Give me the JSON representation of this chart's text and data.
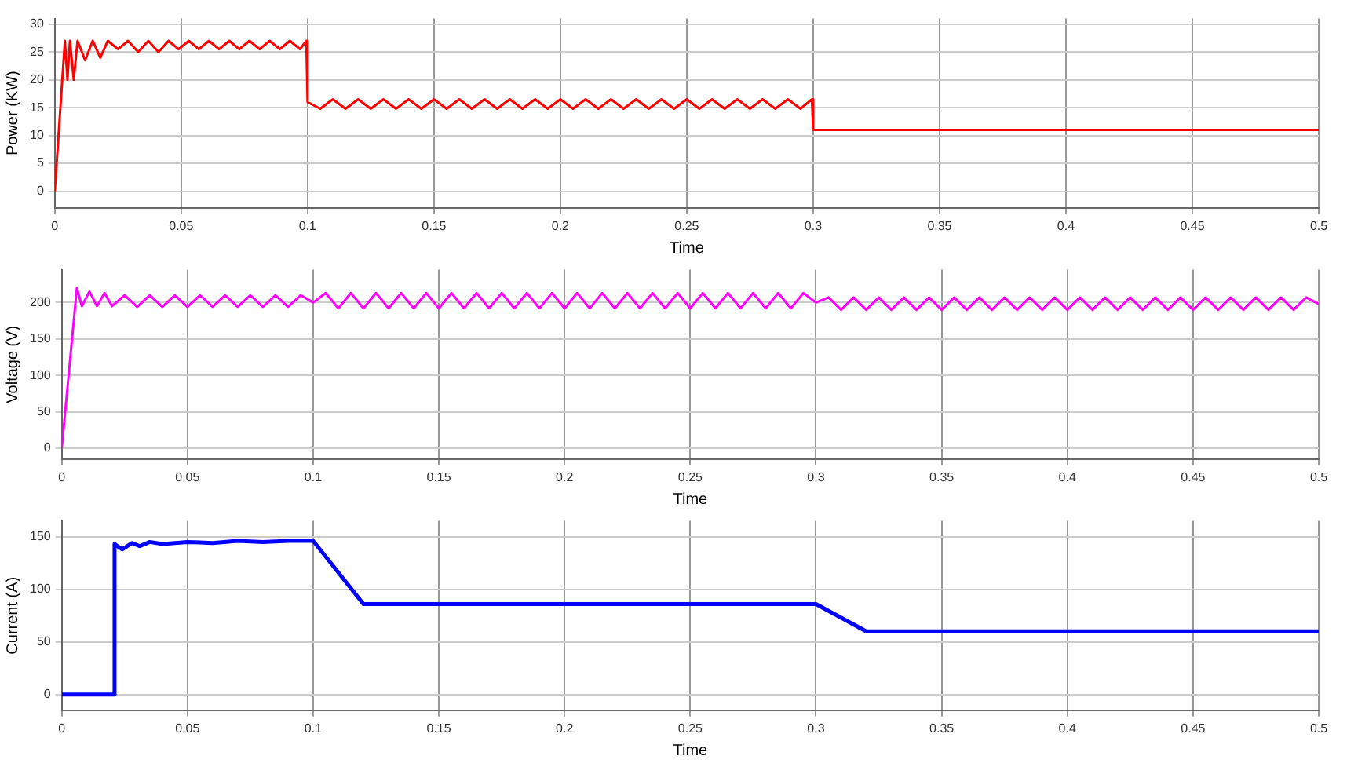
{
  "chart_data": [
    {
      "type": "line",
      "xlabel": "Time",
      "ylabel": "Power (KW)",
      "xlim": [
        0,
        0.5
      ],
      "xticks": [
        0,
        0.05,
        0.1,
        0.15,
        0.2,
        0.25,
        0.3,
        0.35,
        0.4,
        0.45,
        0.5
      ],
      "ylim": [
        -3,
        31
      ],
      "yticks": [
        0,
        5,
        10,
        15,
        20,
        25,
        30
      ],
      "grid": true,
      "marker": "none",
      "line_style": "solid",
      "series": [
        {
          "color": "#ff0000",
          "x": [
            0,
            0.004,
            0.005,
            0.006,
            0.0075,
            0.009,
            0.012,
            0.015,
            0.018,
            0.021,
            0.025,
            0.029,
            0.033,
            0.037,
            0.041,
            0.045,
            0.049,
            0.053,
            0.057,
            0.061,
            0.065,
            0.069,
            0.073,
            0.077,
            0.081,
            0.085,
            0.089,
            0.093,
            0.097,
            0.0995,
            0.1,
            0.105,
            0.11,
            0.115,
            0.12,
            0.125,
            0.13,
            0.135,
            0.14,
            0.145,
            0.15,
            0.155,
            0.16,
            0.165,
            0.17,
            0.175,
            0.18,
            0.185,
            0.19,
            0.195,
            0.2,
            0.205,
            0.21,
            0.215,
            0.22,
            0.225,
            0.23,
            0.235,
            0.24,
            0.245,
            0.25,
            0.255,
            0.26,
            0.265,
            0.27,
            0.275,
            0.28,
            0.285,
            0.29,
            0.295,
            0.2995,
            0.3,
            0.35,
            0.4,
            0.45,
            0.5
          ],
          "values": [
            0,
            27,
            20,
            27,
            20,
            27,
            23.5,
            27,
            24,
            27,
            25.5,
            27,
            25,
            27,
            25,
            27,
            25.5,
            27,
            25.5,
            27,
            25.5,
            27,
            25.5,
            27,
            25.5,
            27,
            25.5,
            27,
            25.5,
            27,
            16,
            14.8,
            16.5,
            14.8,
            16.5,
            14.8,
            16.5,
            14.8,
            16.5,
            14.8,
            16.5,
            14.8,
            16.5,
            14.8,
            16.5,
            14.8,
            16.5,
            14.8,
            16.5,
            14.8,
            16.5,
            14.8,
            16.5,
            14.8,
            16.5,
            14.8,
            16.5,
            14.8,
            16.5,
            14.8,
            16.5,
            14.8,
            16.5,
            14.8,
            16.5,
            14.8,
            16.5,
            14.8,
            16.5,
            14.8,
            16.5,
            11,
            11,
            11,
            11,
            11
          ]
        }
      ]
    },
    {
      "type": "line",
      "xlabel": "Time",
      "ylabel": "Voltage (V)",
      "xlim": [
        0,
        0.5
      ],
      "xticks": [
        0,
        0.05,
        0.1,
        0.15,
        0.2,
        0.25,
        0.3,
        0.35,
        0.4,
        0.45,
        0.5
      ],
      "ylim": [
        -15,
        245
      ],
      "yticks": [
        0,
        50,
        100,
        150,
        200
      ],
      "grid": true,
      "marker": "none",
      "line_style": "solid",
      "series": [
        {
          "color": "#ff00ff",
          "x": [
            0,
            0.006,
            0.008,
            0.011,
            0.014,
            0.017,
            0.02,
            0.025,
            0.03,
            0.035,
            0.04,
            0.045,
            0.05,
            0.055,
            0.06,
            0.065,
            0.07,
            0.075,
            0.08,
            0.085,
            0.09,
            0.095,
            0.1,
            0.105,
            0.11,
            0.115,
            0.12,
            0.125,
            0.13,
            0.135,
            0.14,
            0.145,
            0.15,
            0.155,
            0.16,
            0.165,
            0.17,
            0.175,
            0.18,
            0.185,
            0.19,
            0.195,
            0.2,
            0.205,
            0.21,
            0.215,
            0.22,
            0.225,
            0.23,
            0.235,
            0.24,
            0.245,
            0.25,
            0.255,
            0.26,
            0.265,
            0.27,
            0.275,
            0.28,
            0.285,
            0.29,
            0.295,
            0.3,
            0.305,
            0.31,
            0.315,
            0.32,
            0.325,
            0.33,
            0.335,
            0.34,
            0.345,
            0.35,
            0.355,
            0.36,
            0.365,
            0.37,
            0.375,
            0.38,
            0.385,
            0.39,
            0.395,
            0.4,
            0.405,
            0.41,
            0.415,
            0.42,
            0.425,
            0.43,
            0.435,
            0.44,
            0.445,
            0.45,
            0.455,
            0.46,
            0.465,
            0.47,
            0.475,
            0.48,
            0.485,
            0.49,
            0.495,
            0.5
          ],
          "values": [
            0,
            220,
            195,
            215,
            195,
            213,
            195,
            210,
            194,
            210,
            194,
            210,
            194,
            210,
            194,
            210,
            194,
            210,
            194,
            210,
            194,
            210,
            200,
            213,
            192,
            213,
            192,
            213,
            192,
            213,
            192,
            213,
            192,
            213,
            192,
            213,
            192,
            213,
            192,
            213,
            192,
            213,
            192,
            213,
            192,
            213,
            192,
            213,
            192,
            213,
            192,
            213,
            192,
            213,
            192,
            213,
            192,
            213,
            192,
            213,
            192,
            213,
            200,
            207,
            190,
            207,
            190,
            207,
            190,
            207,
            190,
            207,
            190,
            207,
            190,
            207,
            190,
            207,
            190,
            207,
            190,
            207,
            190,
            207,
            190,
            207,
            190,
            207,
            190,
            207,
            190,
            207,
            190,
            207,
            190,
            207,
            190,
            207,
            190,
            207,
            190,
            207,
            198
          ]
        }
      ]
    },
    {
      "type": "line",
      "xlabel": "Time",
      "ylabel": "Current (A)",
      "xlim": [
        0,
        0.5
      ],
      "xticks": [
        0,
        0.05,
        0.1,
        0.15,
        0.2,
        0.25,
        0.3,
        0.35,
        0.4,
        0.45,
        0.5
      ],
      "ylim": [
        -15,
        165
      ],
      "yticks": [
        0,
        50,
        100,
        150
      ],
      "grid": true,
      "marker": "none",
      "line_style": "solid",
      "series": [
        {
          "color": "#0000ff",
          "x": [
            0,
            0.0205,
            0.021,
            0.024,
            0.028,
            0.031,
            0.035,
            0.04,
            0.05,
            0.06,
            0.07,
            0.08,
            0.09,
            0.1,
            0.12,
            0.3,
            0.32,
            0.5
          ],
          "values": [
            0,
            0,
            143,
            138,
            144,
            141,
            145,
            143,
            145,
            144,
            146,
            145,
            146,
            146,
            86,
            86,
            60,
            60
          ]
        }
      ]
    }
  ]
}
